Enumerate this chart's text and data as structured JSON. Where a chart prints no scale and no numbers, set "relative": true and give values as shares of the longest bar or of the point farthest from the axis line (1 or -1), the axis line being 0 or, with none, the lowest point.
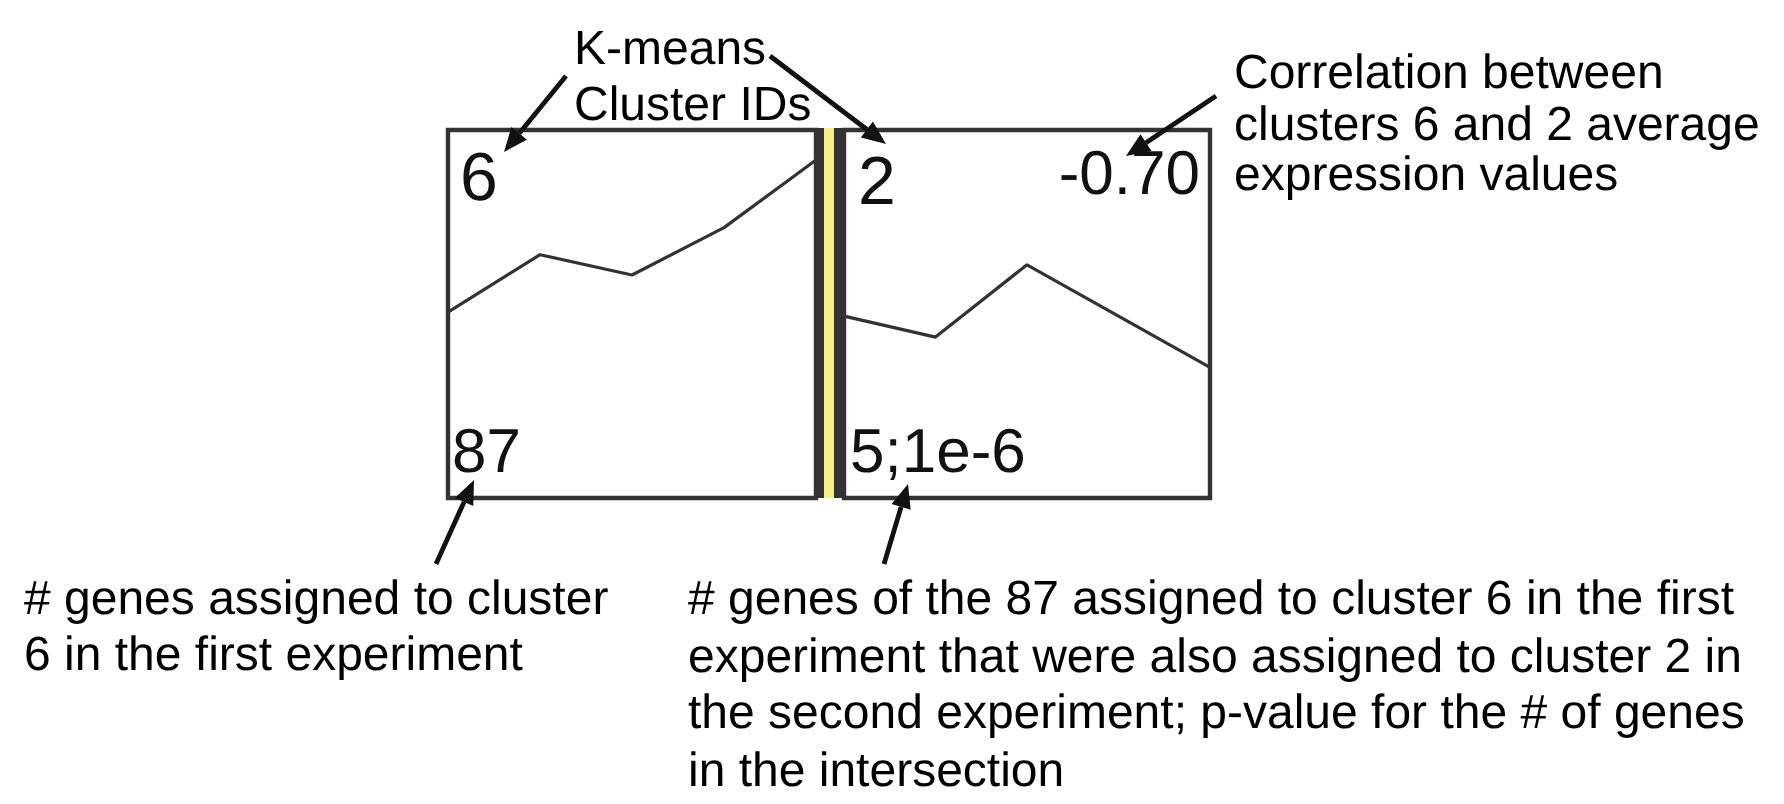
{
  "chart_data": [
    {
      "type": "line",
      "categories": [
        null,
        null,
        null,
        null,
        null
      ],
      "values": [
        0.55,
        0.72,
        0.66,
        0.8,
        1
      ],
      "color": "#333333",
      "relative": true,
      "annotations": [
        "6",
        "87",
        "K-means Cluster IDs",
        "# genes assigned to cluster 6 in the first experiment"
      ]
    },
    {
      "type": "line",
      "categories": [
        null,
        null,
        null,
        null,
        null
      ],
      "values": [
        0.78,
        0.69,
        1,
        0.78,
        0.56
      ],
      "color": "#333333",
      "relative": true,
      "annotations": [
        "2",
        "-0.70",
        "5;1e-6",
        "Correlation between clusters 6 and 2 average expression values",
        "# genes of the 87 assigned to cluster 6 in the first experiment that were also assigned to cluster 2 in the second experiment; p-value for the # of genes in the intersection"
      ]
    }
  ]
}
